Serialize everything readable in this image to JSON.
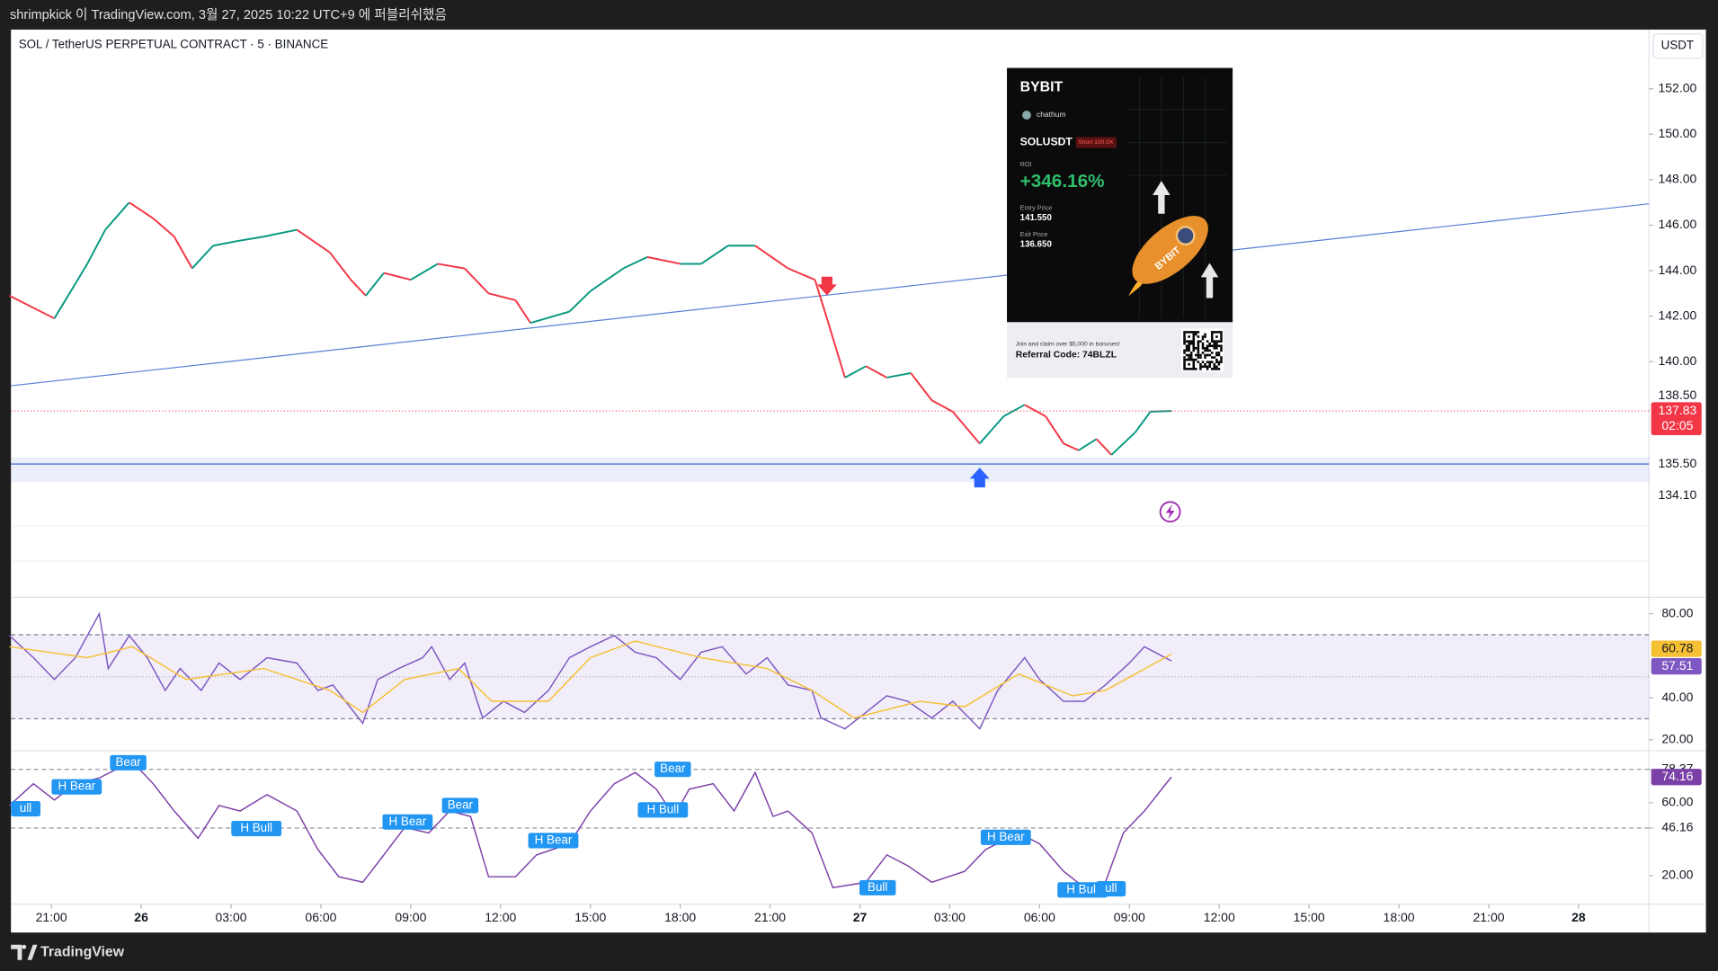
{
  "header": {
    "publish_text": "shrimpkick 이 TradingView.com, 3월 27, 2025 10:22 UTC+9 에 퍼블리쉬했음",
    "symbol": "SOL / TetherUS PERPETUAL CONTRACT · 5 · BINANCE",
    "currency": "USDT"
  },
  "chart_data": [
    {
      "type": "line",
      "x": [
        -1.4,
        0.1,
        1.2,
        1.8,
        2.6,
        3.4,
        4.1,
        4.7,
        5.4,
        6.2,
        7.1,
        8.2,
        9.3,
        10.0,
        10.5,
        11.1,
        12.0,
        12.9,
        13.8,
        14.6,
        15.5,
        16.0,
        17.3,
        18.0,
        19.1,
        19.9,
        21.0,
        21.7,
        22.6,
        23.5,
        24.6,
        25.5,
        25.9,
        26.5,
        27.2,
        27.9,
        28.7,
        29.4,
        30.1,
        31.0,
        31.8,
        32.5,
        33.2,
        33.8,
        34.3,
        34.9,
        35.4,
        36.2,
        36.7,
        37.4
      ],
      "values": [
        142.9,
        141.9,
        144.3,
        145.8,
        147.0,
        146.3,
        145.5,
        144.1,
        145.1,
        145.3,
        145.5,
        145.8,
        144.8,
        143.6,
        142.9,
        143.9,
        143.6,
        144.3,
        144.1,
        143.0,
        142.7,
        141.7,
        142.2,
        143.1,
        144.1,
        144.6,
        144.3,
        144.3,
        145.1,
        145.1,
        144.1,
        143.6,
        141.9,
        139.3,
        139.8,
        139.3,
        139.5,
        138.3,
        137.8,
        136.4,
        137.6,
        138.1,
        137.6,
        136.4,
        136.1,
        136.6,
        135.9,
        136.9,
        137.8,
        137.83
      ],
      "up_color": "#089981",
      "down_color": "#f23645",
      "xlim": [
        -1.35,
        53.35
      ],
      "ylim": [
        129.64,
        154.6
      ],
      "yticks": [
        {
          "value": 152,
          "label": "152.00"
        },
        {
          "value": 150,
          "label": "150.00"
        },
        {
          "value": 148,
          "label": "148.00"
        },
        {
          "value": 146,
          "label": "146.00"
        },
        {
          "value": 144,
          "label": "144.00"
        },
        {
          "value": 142,
          "label": "142.00"
        },
        {
          "value": 140,
          "label": "140.00"
        }
      ],
      "levels": [
        {
          "value": 138.5,
          "label": "138.50"
        },
        {
          "value": 135.5,
          "label": "135.50"
        },
        {
          "value": 134.1,
          "label": "134.10"
        }
      ],
      "level_line": 135.5,
      "level_color": "#5b7fd6",
      "zone": [
        134.7,
        135.8
      ],
      "trendline": {
        "x": [
          -1.35,
          53.35
        ],
        "y": [
          138.94,
          146.94
        ],
        "color": "#5b7fd6"
      },
      "signals": [
        {
          "kind": "sell",
          "x": 25.9,
          "y": 143.3
        },
        {
          "kind": "buy",
          "x": 31.0,
          "y": 135.0
        }
      ],
      "countdown": "02:05"
    },
    {
      "type": "line",
      "xlim": [
        -1.35,
        53.35
      ],
      "ylim": [
        14.78,
        87.83
      ],
      "yticks": [
        {
          "value": 80,
          "label": "80.00"
        },
        {
          "value": 40,
          "label": "40.00"
        },
        {
          "value": 20,
          "label": "20.00"
        }
      ],
      "band": [
        30,
        70
      ],
      "midline": 50,
      "series": [
        {
          "color": "#7e57c2",
          "x": [
            -1.4,
            -0.6,
            0.1,
            0.8,
            1.6,
            1.9,
            2.6,
            3.2,
            3.8,
            4.3,
            5.0,
            5.6,
            6.3,
            7.2,
            8.2,
            8.9,
            9.4,
            10.4,
            10.9,
            11.6,
            12.4,
            12.7,
            13.3,
            13.8,
            14.4,
            15.1,
            15.8,
            16.6,
            17.3,
            18.0,
            18.8,
            19.5,
            20.2,
            21.0,
            21.7,
            22.4,
            23.2,
            23.9,
            24.6,
            25.4,
            25.7,
            26.5,
            27.2,
            27.9,
            28.6,
            29.4,
            30.1,
            31.0,
            31.6,
            32.5,
            33.0,
            33.8,
            34.5,
            35.2,
            36.0,
            36.5,
            37.4
          ],
          "values": [
            69.6,
            59.1,
            48.7,
            59.1,
            80,
            53.9,
            69.6,
            59.1,
            43.5,
            53.9,
            43.5,
            56.5,
            48.7,
            59.1,
            56.5,
            43.5,
            46.1,
            27.8,
            48.7,
            53.9,
            59.1,
            64.3,
            48.7,
            56.5,
            30.4,
            38.3,
            33.0,
            43.5,
            59.1,
            64.3,
            69.6,
            61.7,
            59.1,
            48.7,
            61.7,
            64.3,
            51.3,
            59.1,
            46.1,
            43.5,
            30.4,
            25.2,
            33.0,
            40.9,
            38.3,
            30.4,
            38.3,
            25.2,
            43.5,
            59.1,
            48.7,
            38.3,
            38.3,
            46.1,
            56.5,
            64.3,
            57.51
          ]
        },
        {
          "color": "#f5c033",
          "x": [
            -1.4,
            1.2,
            2.7,
            4.5,
            7.1,
            9.3,
            10.4,
            11.8,
            13.6,
            14.7,
            16.6,
            18.0,
            19.5,
            21.7,
            23.9,
            25.4,
            26.8,
            29.0,
            30.5,
            32.3,
            34.1,
            35.2,
            37.4
          ],
          "values": [
            64.3,
            59.1,
            64.3,
            48.7,
            53.9,
            43.5,
            33.0,
            48.7,
            53.9,
            38.3,
            38.3,
            59.1,
            67.0,
            59.1,
            53.9,
            43.5,
            30.4,
            38.3,
            35.7,
            51.3,
            40.9,
            43.5,
            60.78
          ]
        }
      ]
    },
    {
      "type": "line",
      "xlim": [
        -1.35,
        53.35
      ],
      "ylim": [
        4.36,
        88.6
      ],
      "yticks": [
        78.37,
        {
          "value": 60,
          "label": "60.00"
        },
        46.16,
        {
          "value": 20,
          "label": "20.00"
        }
      ],
      "series": [
        {
          "color": "#7b3fa8",
          "x": [
            -1.4,
            -0.6,
            0.1,
            0.8,
            1.6,
            2.3,
            2.7,
            3.4,
            4.1,
            4.9,
            5.6,
            6.3,
            7.2,
            8.2,
            8.9,
            9.6,
            10.4,
            11.1,
            11.8,
            12.6,
            13.3,
            14.0,
            14.6,
            15.5,
            16.2,
            17.3,
            18.0,
            18.8,
            19.5,
            20.2,
            20.8,
            21.3,
            22.1,
            22.8,
            23.5,
            24.1,
            24.6,
            25.4,
            26.1,
            27.2,
            27.9,
            28.6,
            29.4,
            30.5,
            31.2,
            32.3,
            33.0,
            33.8,
            34.5,
            35.2,
            35.8,
            36.5,
            37.4
          ],
          "values": [
            58.5,
            70.5,
            61.5,
            70.5,
            73.6,
            79.6,
            82.6,
            70.5,
            55.5,
            40.5,
            58.5,
            55.5,
            64.5,
            55.5,
            34.4,
            19.4,
            16.4,
            31.4,
            46.5,
            43.5,
            55.5,
            52.5,
            19.4,
            19.4,
            31.4,
            37.5,
            55.5,
            70.5,
            76.6,
            67.5,
            52.5,
            67.5,
            70.5,
            55.5,
            76.6,
            52.5,
            55.5,
            43.5,
            13.4,
            16.4,
            31.4,
            25.4,
            16.4,
            22.4,
            34.4,
            43.5,
            37.5,
            22.4,
            13.4,
            16.4,
            43.5,
            55.5,
            74.16
          ]
        }
      ],
      "signal_color": "#2196f3",
      "signals": [
        "ull",
        "H Bear",
        "Bear",
        "H Bull",
        "H Bear",
        "Bear",
        "H Bear",
        "Bear",
        "H Bull",
        "Bull",
        "H Bear",
        "H Bull",
        "ull"
      ],
      "xticks": [
        {
          "value": 0,
          "label": "21:00"
        },
        {
          "value": 3,
          "label": "26"
        },
        {
          "value": 6,
          "label": "03:00"
        },
        {
          "value": 9,
          "label": "06:00"
        },
        {
          "value": 12,
          "label": "09:00"
        },
        {
          "value": 15,
          "label": "12:00"
        },
        {
          "value": 18,
          "label": "15:00"
        },
        {
          "value": 21,
          "label": "18:00"
        },
        {
          "value": 24,
          "label": "21:00"
        },
        {
          "value": 27,
          "label": "27"
        },
        {
          "value": 30,
          "label": "03:00"
        },
        {
          "value": 33,
          "label": "06:00"
        },
        {
          "value": 36,
          "label": "09:00"
        },
        {
          "value": 39,
          "label": "12:00"
        },
        {
          "value": 42,
          "label": "15:00"
        },
        {
          "value": 45,
          "label": "18:00"
        },
        {
          "value": 48,
          "label": "21:00"
        },
        {
          "value": 51,
          "label": "28"
        }
      ]
    }
  ],
  "ad": {
    "brand": "BYBIT",
    "user": "chathum",
    "pair": "SOLUSDT",
    "position": "Short 100.0X",
    "roi_label": "ROI",
    "roi": "+346.16%",
    "entry_label": "Entry Price",
    "entry": "141.550",
    "exit_label": "Exit Price",
    "exit": "136.650",
    "promo": "Join and claim over $5,000 in bonuses!",
    "referral": "Referral Code: 74BLZL",
    "rocket_text": "BYBIT"
  },
  "footer": {
    "brand": "TradingView"
  }
}
